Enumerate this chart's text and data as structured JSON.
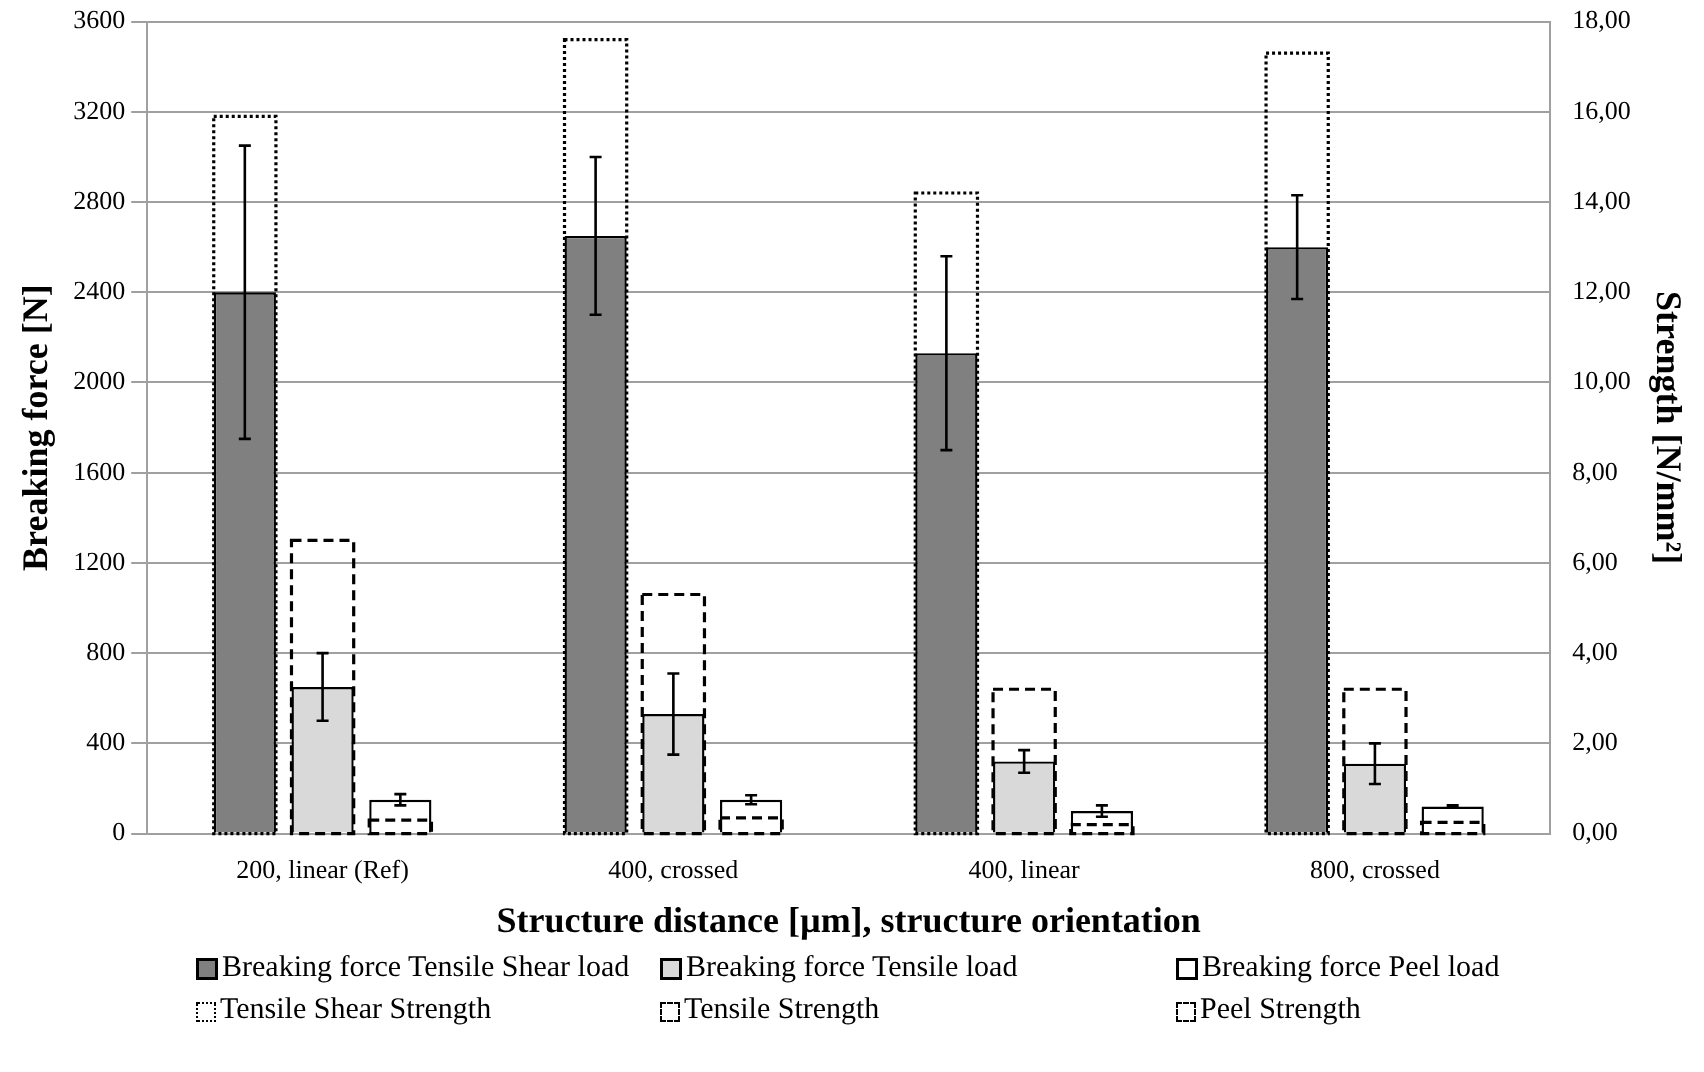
{
  "chart_data": {
    "type": "bar",
    "categories": [
      "200, linear (Ref)",
      "400, crossed",
      "400, linear",
      "800, crossed"
    ],
    "xlabel": "Structure distance [µm], structure orientation",
    "ylabel": "Breaking force [N]",
    "y2label": "Strength [N/mm²]",
    "series": [
      {
        "name": "Breaking force Tensile Shear load",
        "color": "#808080",
        "values": [
          2400,
          2650,
          2130,
          2600
        ],
        "errors": [
          650,
          350,
          430,
          230
        ]
      },
      {
        "name": "Breaking force Tensile load",
        "color": "#d9d9d9",
        "values": [
          650,
          530,
          320,
          310
        ],
        "errors": [
          150,
          180,
          50,
          90
        ]
      },
      {
        "name": "Breaking force Peel load",
        "color": "#ffffff",
        "values": [
          150,
          150,
          100,
          120
        ],
        "errors": [
          25,
          20,
          25,
          5
        ]
      },
      {
        "name": "Tensile Shear Strength",
        "color": "#000000",
        "axis": "y2",
        "line_style": "dotted",
        "values": [
          15.9,
          17.6,
          14.2,
          17.3
        ]
      },
      {
        "name": "Tensile Strength",
        "color": "#000000",
        "axis": "y2",
        "line_style": "dashed",
        "values": [
          6.5,
          5.3,
          3.2,
          3.2
        ]
      },
      {
        "name": "Peel Strength",
        "color": "#000000",
        "axis": "y2",
        "line_style": "dashed",
        "values": [
          0.3,
          0.35,
          0.2,
          0.25
        ]
      }
    ],
    "ylim": [
      0,
      3600
    ],
    "yticks": [
      0,
      400,
      800,
      1200,
      1600,
      2000,
      2400,
      2800,
      3200,
      3600
    ],
    "y2lim": [
      0,
      18
    ],
    "y2ticks": [
      {
        "value": 0,
        "label": "0,00"
      },
      {
        "value": 2,
        "label": "2,00"
      },
      {
        "value": 4,
        "label": "4,00"
      },
      {
        "value": 6,
        "label": "6,00"
      },
      {
        "value": 8,
        "label": "8,00"
      },
      {
        "value": 10,
        "label": "10,00"
      },
      {
        "value": 12,
        "label": "12,00"
      },
      {
        "value": 14,
        "label": "14,00"
      },
      {
        "value": 16,
        "label": "16,00"
      },
      {
        "value": 18,
        "label": "18,00"
      }
    ],
    "grid": "y",
    "legend": "bottom"
  }
}
